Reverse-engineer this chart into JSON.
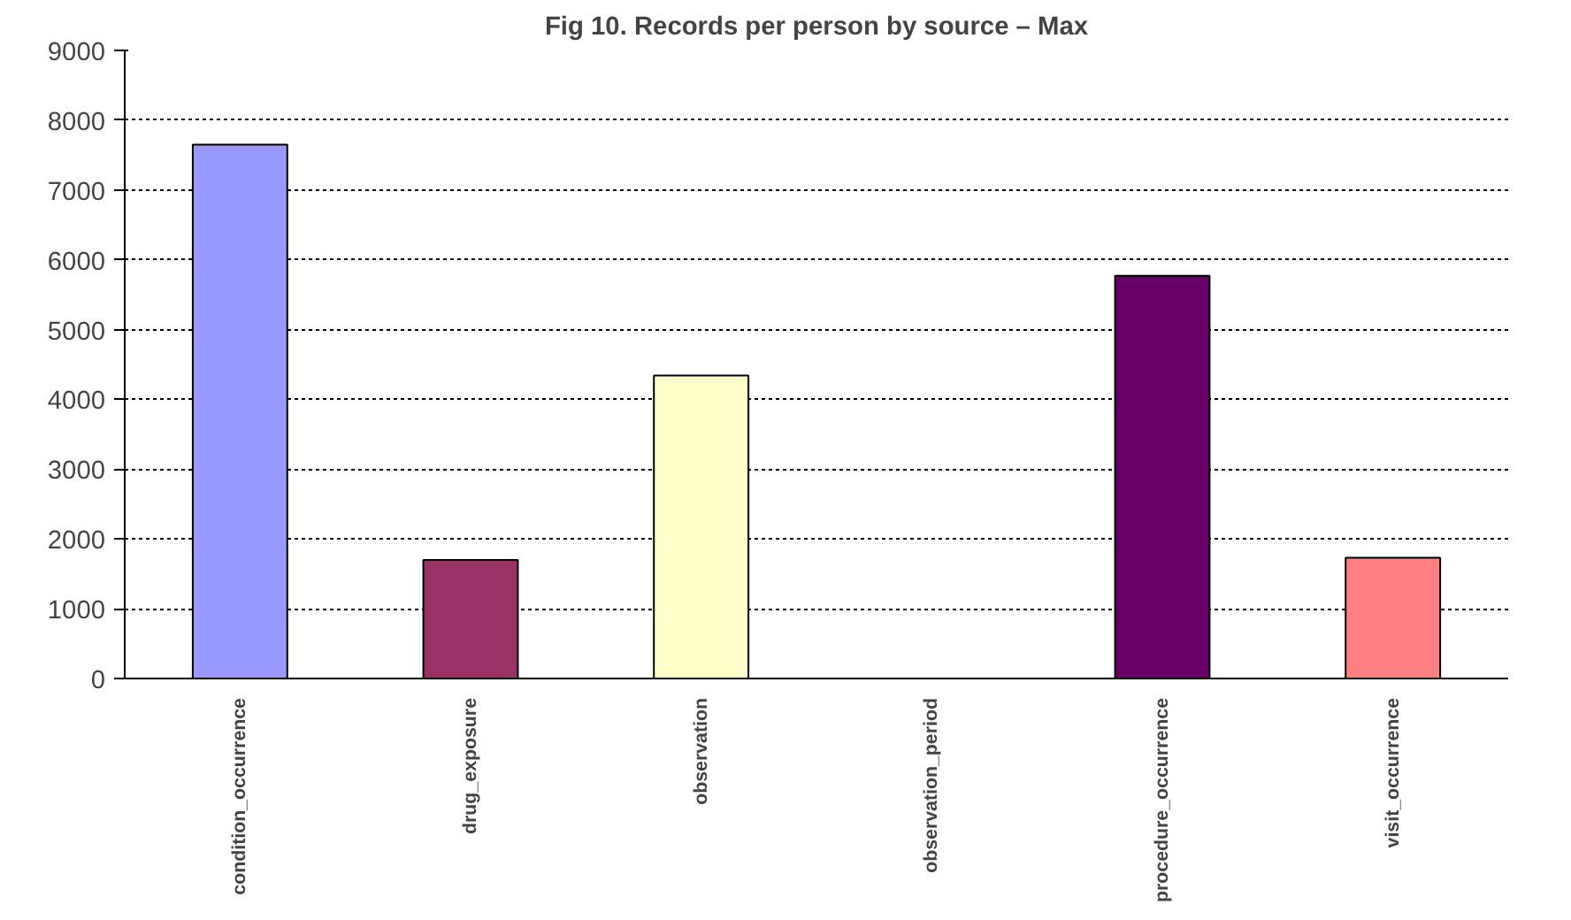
{
  "chart_data": {
    "type": "bar",
    "title": "Fig 10. Records per person by source – Max",
    "categories": [
      "condition_occurrence",
      "drug_exposure",
      "observation",
      "observation_period",
      "procedure_occurrence",
      "visit_occurrence"
    ],
    "values": [
      7650,
      1700,
      4340,
      0,
      5770,
      1730
    ],
    "colors": [
      "#9999ff",
      "#993366",
      "#ffffcc",
      null,
      "#660066",
      "#ff8080"
    ],
    "ylim": [
      0,
      9000
    ],
    "yticks": [
      0,
      1000,
      2000,
      3000,
      4000,
      5000,
      6000,
      7000,
      8000,
      9000
    ],
    "grid": "y"
  }
}
